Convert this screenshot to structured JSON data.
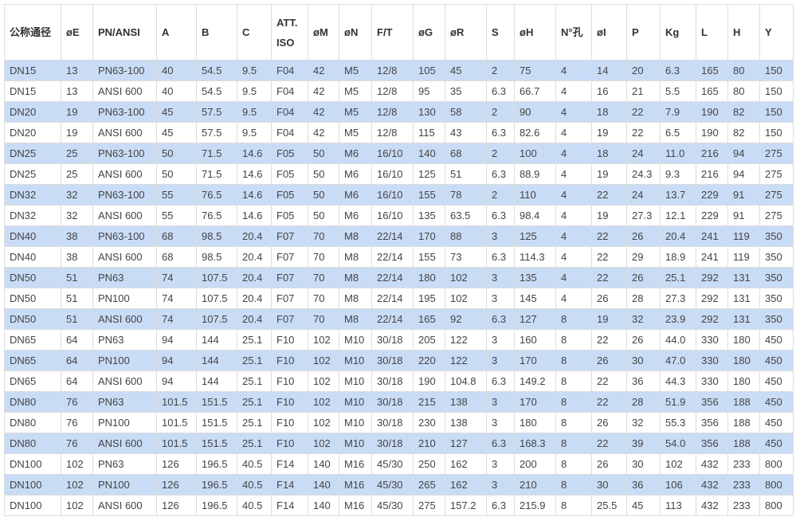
{
  "table": {
    "highlight_color": "#c9dcf6",
    "headers": [
      "公称通径",
      "øE",
      "PN/ANSI",
      "A",
      "B",
      "C",
      "ATT. ISO",
      "øM",
      "øN",
      "F/T",
      "øG",
      "øR",
      "S",
      "øH",
      "N°孔",
      "øI",
      "P",
      "Kg",
      "L",
      "H",
      "Y"
    ],
    "rows": [
      [
        "DN15",
        "13",
        "PN63-100",
        "40",
        "54.5",
        "9.5",
        "F04",
        "42",
        "M5",
        "12/8",
        "105",
        "45",
        "2",
        "75",
        "4",
        "14",
        "20",
        "6.3",
        "165",
        "80",
        "150"
      ],
      [
        "DN15",
        "13",
        "ANSI 600",
        "40",
        "54.5",
        "9.5",
        "F04",
        "42",
        "M5",
        "12/8",
        "95",
        "35",
        "6.3",
        "66.7",
        "4",
        "16",
        "21",
        "5.5",
        "165",
        "80",
        "150"
      ],
      [
        "DN20",
        "19",
        "PN63-100",
        "45",
        "57.5",
        "9.5",
        "F04",
        "42",
        "M5",
        "12/8",
        "130",
        "58",
        "2",
        "90",
        "4",
        "18",
        "22",
        "7.9",
        "190",
        "82",
        "150"
      ],
      [
        "DN20",
        "19",
        "ANSI 600",
        "45",
        "57.5",
        "9.5",
        "F04",
        "42",
        "M5",
        "12/8",
        "115",
        "43",
        "6.3",
        "82.6",
        "4",
        "19",
        "22",
        "6.5",
        "190",
        "82",
        "150"
      ],
      [
        "DN25",
        "25",
        "PN63-100",
        "50",
        "71.5",
        "14.6",
        "F05",
        "50",
        "M6",
        "16/10",
        "140",
        "68",
        "2",
        "100",
        "4",
        "18",
        "24",
        "11.0",
        "216",
        "94",
        "275"
      ],
      [
        "DN25",
        "25",
        "ANSI 600",
        "50",
        "71.5",
        "14.6",
        "F05",
        "50",
        "M6",
        "16/10",
        "125",
        "51",
        "6.3",
        "88.9",
        "4",
        "19",
        "24.3",
        "9.3",
        "216",
        "94",
        "275"
      ],
      [
        "DN32",
        "32",
        "PN63-100",
        "55",
        "76.5",
        "14.6",
        "F05",
        "50",
        "M6",
        "16/10",
        "155",
        "78",
        "2",
        "110",
        "4",
        "22",
        "24",
        "13.7",
        "229",
        "91",
        "275"
      ],
      [
        "DN32",
        "32",
        "ANSI 600",
        "55",
        "76.5",
        "14.6",
        "F05",
        "50",
        "M6",
        "16/10",
        "135",
        "63.5",
        "6.3",
        "98.4",
        "4",
        "19",
        "27.3",
        "12.1",
        "229",
        "91",
        "275"
      ],
      [
        "DN40",
        "38",
        "PN63-100",
        "68",
        "98.5",
        "20.4",
        "F07",
        "70",
        "M8",
        "22/14",
        "170",
        "88",
        "3",
        "125",
        "4",
        "22",
        "26",
        "20.4",
        "241",
        "119",
        "350"
      ],
      [
        "DN40",
        "38",
        "ANSI 600",
        "68",
        "98.5",
        "20.4",
        "F07",
        "70",
        "M8",
        "22/14",
        "155",
        "73",
        "6.3",
        "114.3",
        "4",
        "22",
        "29",
        "18.9",
        "241",
        "119",
        "350"
      ],
      [
        "DN50",
        "51",
        "PN63",
        "74",
        "107.5",
        "20.4",
        "F07",
        "70",
        "M8",
        "22/14",
        "180",
        "102",
        "3",
        "135",
        "4",
        "22",
        "26",
        "25.1",
        "292",
        "131",
        "350"
      ],
      [
        "DN50",
        "51",
        "PN100",
        "74",
        "107.5",
        "20.4",
        "F07",
        "70",
        "M8",
        "22/14",
        "195",
        "102",
        "3",
        "145",
        "4",
        "26",
        "28",
        "27.3",
        "292",
        "131",
        "350"
      ],
      [
        "DN50",
        "51",
        "ANSI 600",
        "74",
        "107.5",
        "20.4",
        "F07",
        "70",
        "M8",
        "22/14",
        "165",
        "92",
        "6.3",
        "127",
        "8",
        "19",
        "32",
        "23.9",
        "292",
        "131",
        "350"
      ],
      [
        "DN65",
        "64",
        "PN63",
        "94",
        "144",
        "25.1",
        "F10",
        "102",
        "M10",
        "30/18",
        "205",
        "122",
        "3",
        "160",
        "8",
        "22",
        "26",
        "44.0",
        "330",
        "180",
        "450"
      ],
      [
        "DN65",
        "64",
        "PN100",
        "94",
        "144",
        "25.1",
        "F10",
        "102",
        "M10",
        "30/18",
        "220",
        "122",
        "3",
        "170",
        "8",
        "26",
        "30",
        "47.0",
        "330",
        "180",
        "450"
      ],
      [
        "DN65",
        "64",
        "ANSI 600",
        "94",
        "144",
        "25.1",
        "F10",
        "102",
        "M10",
        "30/18",
        "190",
        "104.8",
        "6.3",
        "149.2",
        "8",
        "22",
        "36",
        "44.3",
        "330",
        "180",
        "450"
      ],
      [
        "DN80",
        "76",
        "PN63",
        "101.5",
        "151.5",
        "25.1",
        "F10",
        "102",
        "M10",
        "30/18",
        "215",
        "138",
        "3",
        "170",
        "8",
        "22",
        "28",
        "51.9",
        "356",
        "188",
        "450"
      ],
      [
        "DN80",
        "76",
        "PN100",
        "101.5",
        "151.5",
        "25.1",
        "F10",
        "102",
        "M10",
        "30/18",
        "230",
        "138",
        "3",
        "180",
        "8",
        "26",
        "32",
        "55.3",
        "356",
        "188",
        "450"
      ],
      [
        "DN80",
        "76",
        "ANSI 600",
        "101.5",
        "151.5",
        "25.1",
        "F10",
        "102",
        "M10",
        "30/18",
        "210",
        "127",
        "6.3",
        "168.3",
        "8",
        "22",
        "39",
        "54.0",
        "356",
        "188",
        "450"
      ],
      [
        "DN100",
        "102",
        "PN63",
        "126",
        "196.5",
        "40.5",
        "F14",
        "140",
        "M16",
        "45/30",
        "250",
        "162",
        "3",
        "200",
        "8",
        "26",
        "30",
        "102",
        "432",
        "233",
        "800"
      ],
      [
        "DN100",
        "102",
        "PN100",
        "126",
        "196.5",
        "40.5",
        "F14",
        "140",
        "M16",
        "45/30",
        "265",
        "162",
        "3",
        "210",
        "8",
        "30",
        "36",
        "106",
        "432",
        "233",
        "800"
      ],
      [
        "DN100",
        "102",
        "ANSI 600",
        "126",
        "196.5",
        "40.5",
        "F14",
        "140",
        "M16",
        "45/30",
        "275",
        "157.2",
        "6.3",
        "215.9",
        "8",
        "25.5",
        "45",
        "113",
        "432",
        "233",
        "800"
      ]
    ]
  }
}
